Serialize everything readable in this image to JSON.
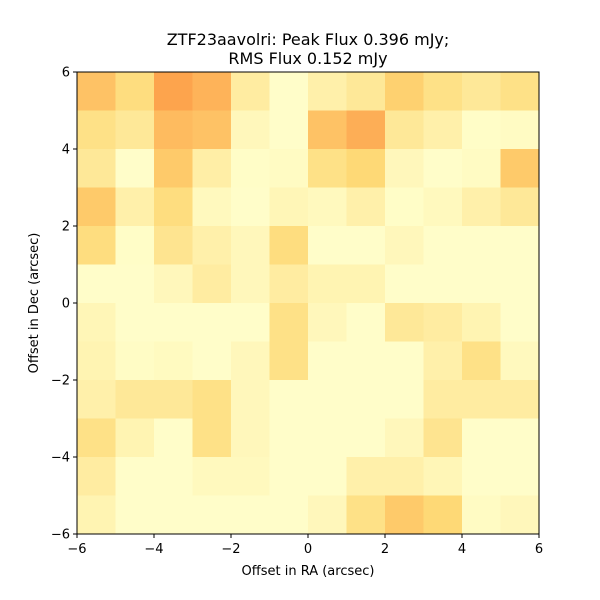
{
  "chart_data": {
    "type": "heatmap",
    "title_line1": "ZTF23aavolri: Peak Flux 0.396 mJy;",
    "title_line2": "RMS Flux 0.152 mJy",
    "xlabel": "Offset in RA (arcsec)",
    "ylabel": "Offset in Dec (arcsec)",
    "xlim": [
      -6,
      6
    ],
    "ylim": [
      -6,
      6
    ],
    "x_ticks": [
      -6,
      -4,
      -2,
      0,
      2,
      4,
      6
    ],
    "y_ticks": [
      -6,
      -4,
      -2,
      0,
      2,
      4,
      6
    ],
    "x_tick_labels": [
      "−6",
      "−4",
      "−2",
      "0",
      "2",
      "4",
      "6"
    ],
    "y_tick_labels": [
      "−6",
      "−4",
      "−2",
      "0",
      "2",
      "4",
      "6"
    ],
    "pixel_size_arcsec": 1,
    "colormap": {
      "low": "#ffffcc",
      "mid": "#fed976",
      "high": "#fd8d3c"
    },
    "value_range": [
      0,
      1
    ],
    "grid": [
      [
        0.65,
        0.45,
        0.85,
        0.75,
        0.25,
        0.02,
        0.2,
        0.3,
        0.55,
        0.4,
        0.3,
        0.4
      ],
      [
        0.4,
        0.3,
        0.7,
        0.65,
        0.1,
        0.02,
        0.65,
        0.78,
        0.3,
        0.2,
        0.03,
        0.05
      ],
      [
        0.3,
        0.02,
        0.6,
        0.22,
        0.03,
        0.05,
        0.4,
        0.5,
        0.1,
        0.02,
        0.05,
        0.6
      ],
      [
        0.6,
        0.2,
        0.45,
        0.08,
        0.02,
        0.12,
        0.08,
        0.2,
        0.03,
        0.08,
        0.2,
        0.3
      ],
      [
        0.45,
        0.03,
        0.35,
        0.2,
        0.1,
        0.45,
        0.02,
        0.02,
        0.1,
        0.02,
        0.02,
        0.02
      ],
      [
        0.02,
        0.02,
        0.1,
        0.25,
        0.1,
        0.25,
        0.15,
        0.15,
        0.02,
        0.02,
        0.02,
        0.02
      ],
      [
        0.12,
        0.02,
        0.02,
        0.02,
        0.02,
        0.4,
        0.1,
        0.02,
        0.3,
        0.25,
        0.15,
        0.02
      ],
      [
        0.15,
        0.04,
        0.07,
        0.02,
        0.1,
        0.4,
        0.02,
        0.02,
        0.02,
        0.2,
        0.4,
        0.08
      ],
      [
        0.2,
        0.3,
        0.3,
        0.4,
        0.1,
        0.02,
        0.02,
        0.02,
        0.02,
        0.25,
        0.25,
        0.25
      ],
      [
        0.4,
        0.15,
        0.02,
        0.4,
        0.1,
        0.02,
        0.02,
        0.02,
        0.1,
        0.35,
        0.02,
        0.02
      ],
      [
        0.25,
        0.02,
        0.02,
        0.08,
        0.08,
        0.02,
        0.02,
        0.2,
        0.2,
        0.12,
        0.02,
        0.02
      ],
      [
        0.15,
        0.02,
        0.02,
        0.02,
        0.02,
        0.02,
        0.1,
        0.4,
        0.6,
        0.5,
        0.05,
        0.1
      ]
    ]
  }
}
